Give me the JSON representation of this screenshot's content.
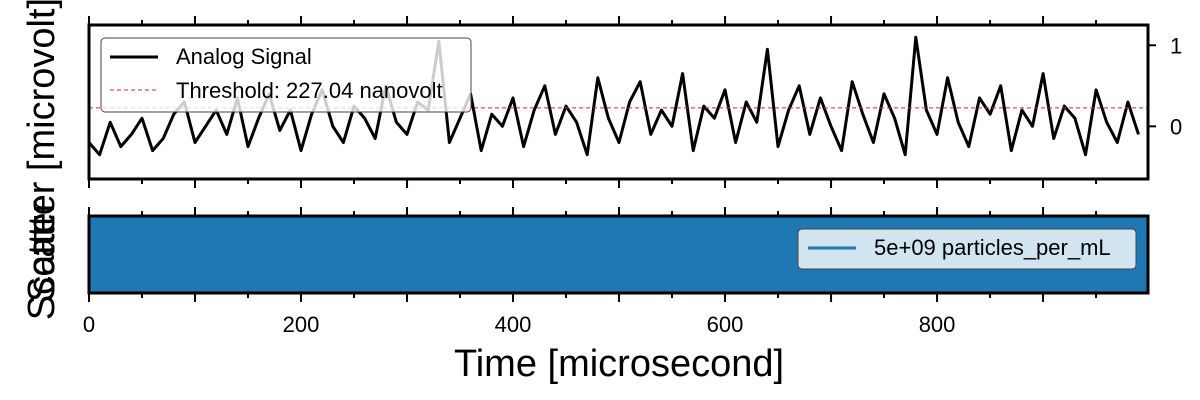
{
  "chart_data": [
    {
      "type": "line",
      "panel": "top",
      "ylabel": "Scatter [microvolt]",
      "xlim": [
        0,
        999
      ],
      "ylim": [
        -0.65,
        1.25
      ],
      "ytick_values": [
        0,
        1
      ],
      "ytick_labels": [
        "0",
        "1"
      ],
      "grid": false,
      "legend_position": "top-left",
      "series": [
        {
          "name": "Analog Signal",
          "color": "#000000",
          "x": [
            0,
            10,
            20,
            30,
            40,
            50,
            60,
            70,
            80,
            90,
            100,
            110,
            120,
            130,
            140,
            150,
            160,
            170,
            180,
            190,
            200,
            210,
            220,
            230,
            240,
            250,
            260,
            270,
            280,
            290,
            300,
            310,
            320,
            330,
            340,
            350,
            360,
            370,
            380,
            390,
            400,
            410,
            420,
            430,
            440,
            450,
            460,
            470,
            480,
            490,
            500,
            510,
            520,
            530,
            540,
            550,
            560,
            570,
            580,
            590,
            600,
            610,
            620,
            630,
            640,
            650,
            660,
            670,
            680,
            690,
            700,
            710,
            720,
            730,
            740,
            750,
            760,
            770,
            780,
            790,
            800,
            810,
            820,
            830,
            840,
            850,
            860,
            870,
            880,
            890,
            900,
            910,
            920,
            930,
            940,
            950,
            960,
            970,
            980,
            990
          ],
          "y": [
            -0.2,
            -0.35,
            0.05,
            -0.25,
            -0.1,
            0.1,
            -0.3,
            -0.15,
            0.15,
            0.3,
            -0.2,
            0.0,
            0.2,
            -0.1,
            0.35,
            -0.25,
            0.1,
            0.4,
            -0.05,
            0.2,
            -0.3,
            0.15,
            0.45,
            0.0,
            -0.2,
            0.25,
            0.1,
            -0.15,
            0.5,
            0.05,
            -0.1,
            0.3,
            0.2,
            1.05,
            -0.2,
            0.1,
            0.4,
            -0.3,
            0.15,
            0.0,
            0.35,
            -0.25,
            0.2,
            0.5,
            -0.1,
            0.25,
            0.05,
            -0.35,
            0.6,
            0.1,
            -0.2,
            0.3,
            0.55,
            -0.1,
            0.2,
            0.0,
            0.65,
            -0.3,
            0.25,
            0.1,
            0.45,
            -0.2,
            0.3,
            0.05,
            0.95,
            -0.25,
            0.2,
            0.5,
            -0.1,
            0.35,
            0.0,
            -0.3,
            0.55,
            0.15,
            -0.2,
            0.4,
            0.1,
            -0.35,
            1.1,
            0.2,
            -0.1,
            0.6,
            0.05,
            -0.25,
            0.35,
            0.15,
            0.5,
            -0.3,
            0.2,
            0.0,
            0.65,
            -0.15,
            0.25,
            0.1,
            -0.35,
            0.45,
            0.05,
            -0.2,
            0.3,
            -0.1
          ]
        },
        {
          "name": "Threshold: 227.04 nanovolt",
          "color": "#d62728",
          "style": "dashed",
          "x": [
            0,
            999
          ],
          "y": [
            0.227,
            0.227
          ]
        }
      ]
    },
    {
      "type": "area",
      "panel": "bottom",
      "ylabel": "Scatter",
      "xlabel": "Time [microsecond]",
      "xlim": [
        0,
        999
      ],
      "ylim": [
        0,
        1
      ],
      "xtick_values": [
        0,
        200,
        400,
        600,
        800
      ],
      "xtick_labels": [
        "0",
        "200",
        "400",
        "600",
        "800"
      ],
      "legend_position": "right",
      "series": [
        {
          "name": "5e+09 particles_per_mL",
          "color": "#1f77b4",
          "x": [
            0,
            999
          ],
          "y": [
            1,
            1
          ]
        }
      ]
    }
  ]
}
